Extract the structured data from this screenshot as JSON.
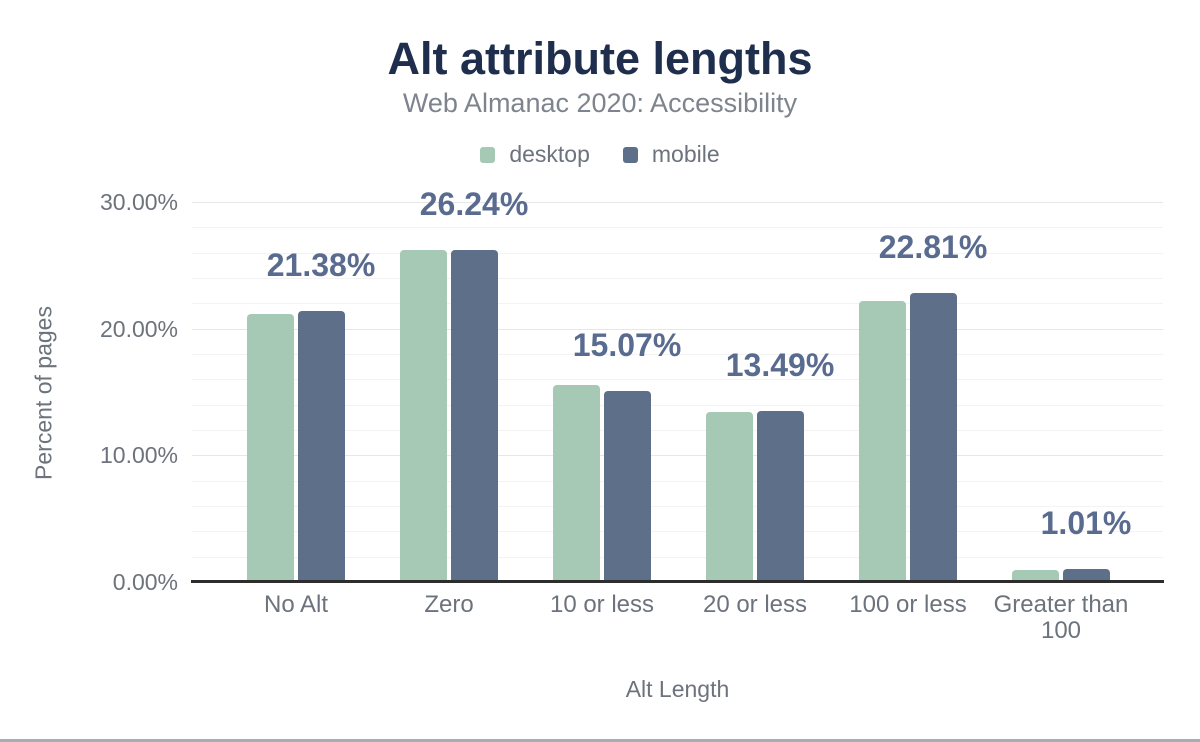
{
  "header": {
    "title": "Alt attribute lengths",
    "subtitle": "Web Almanac 2020: Accessibility"
  },
  "legend": [
    {
      "label": "desktop",
      "color": "#a6c9b5"
    },
    {
      "label": "mobile",
      "color": "#5e7089"
    }
  ],
  "chart_data": {
    "type": "bar",
    "title": "Alt attribute lengths",
    "subtitle": "Web Almanac 2020: Accessibility",
    "categories": [
      "No Alt",
      "Zero",
      "10 or less",
      "20 or less",
      "100 or less",
      "Greater than 100"
    ],
    "series": [
      {
        "name": "desktop",
        "color": "#a6c9b5",
        "values": [
          21.19,
          26.22,
          15.55,
          13.46,
          22.16,
          0.95
        ]
      },
      {
        "name": "mobile",
        "color": "#5e7089",
        "values": [
          21.38,
          26.24,
          15.07,
          13.49,
          22.81,
          1.01
        ]
      }
    ],
    "data_labels": [
      "21.38%",
      "26.24%",
      "15.07%",
      "13.49%",
      "22.81%",
      "1.01%"
    ],
    "data_labels_series": "mobile",
    "xlabel": "Alt Length",
    "ylabel": "Percent of pages",
    "ylim": [
      0,
      30
    ],
    "yticks": [
      "0.00%",
      "10.00%",
      "20.00%",
      "30.00%"
    ],
    "grid": "horizontal, minor every 2%, major every 10%",
    "legend_position": "top"
  },
  "colors": {
    "title": "#1f2e4c",
    "subtitle": "#7d848d",
    "axis_text": "#6d737c",
    "data_label": "#5a6b90",
    "axis_line": "#2d2d2d",
    "gridline_minor": "#f3f3f3",
    "gridline_major": "#e7e7e7",
    "bottom_rule": "#a8adb3"
  }
}
